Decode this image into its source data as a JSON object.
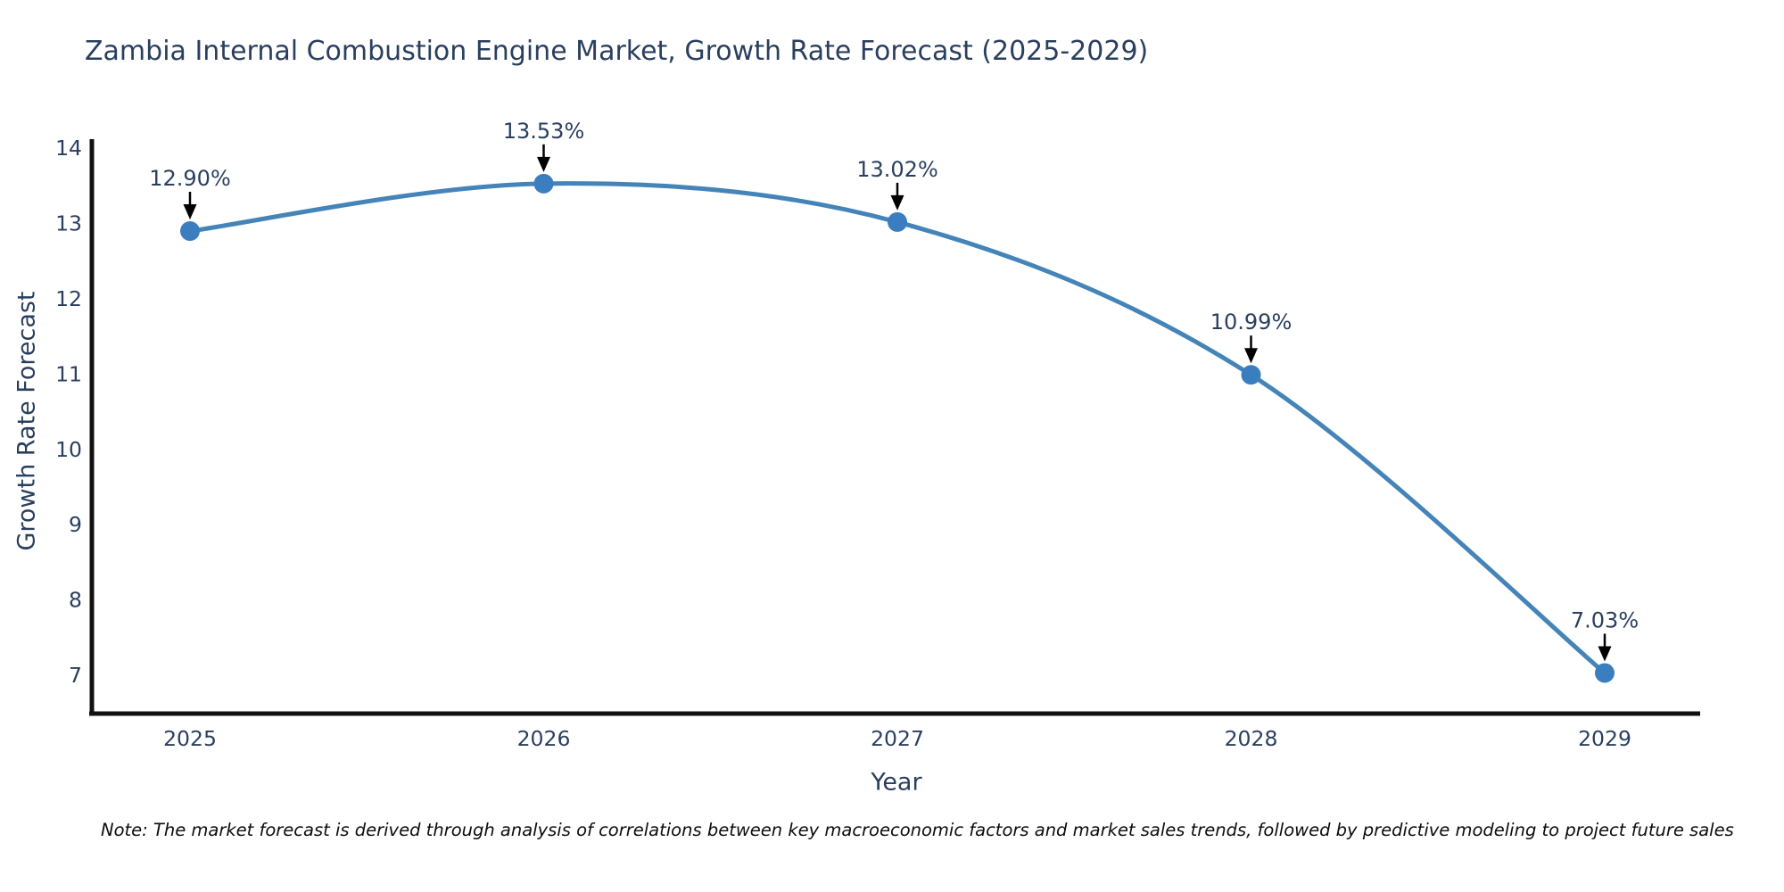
{
  "chart_data": {
    "type": "line",
    "title": "Zambia Internal Combustion Engine Market, Growth Rate Forecast (2025-2029)",
    "xlabel": "Year",
    "ylabel": "Growth Rate Forecast",
    "categories": [
      "2025",
      "2026",
      "2027",
      "2028",
      "2029"
    ],
    "series": [
      {
        "name": "Growth Rate Forecast",
        "values": [
          12.9,
          13.53,
          13.02,
          10.99,
          7.03
        ]
      }
    ],
    "point_labels": [
      "12.90%",
      "13.53%",
      "13.02%",
      "10.99%",
      "7.03%"
    ],
    "yticks": [
      "7",
      "8",
      "9",
      "10",
      "11",
      "12",
      "13",
      "14"
    ],
    "ylim": [
      6.49,
      14.0
    ],
    "line_shape": "spline",
    "grid": false,
    "legend_position": "none",
    "colors": {
      "line": "#4484b8",
      "marker": "#3b7ec0",
      "axis": "#111111",
      "text": "#2a3f5f",
      "annotation_arrow": "#000000"
    }
  },
  "note": {
    "text": "Note: The market forecast is derived through analysis of correlations between key macroeconomic factors and market sales trends, followed by predictive modeling to project future sales"
  }
}
